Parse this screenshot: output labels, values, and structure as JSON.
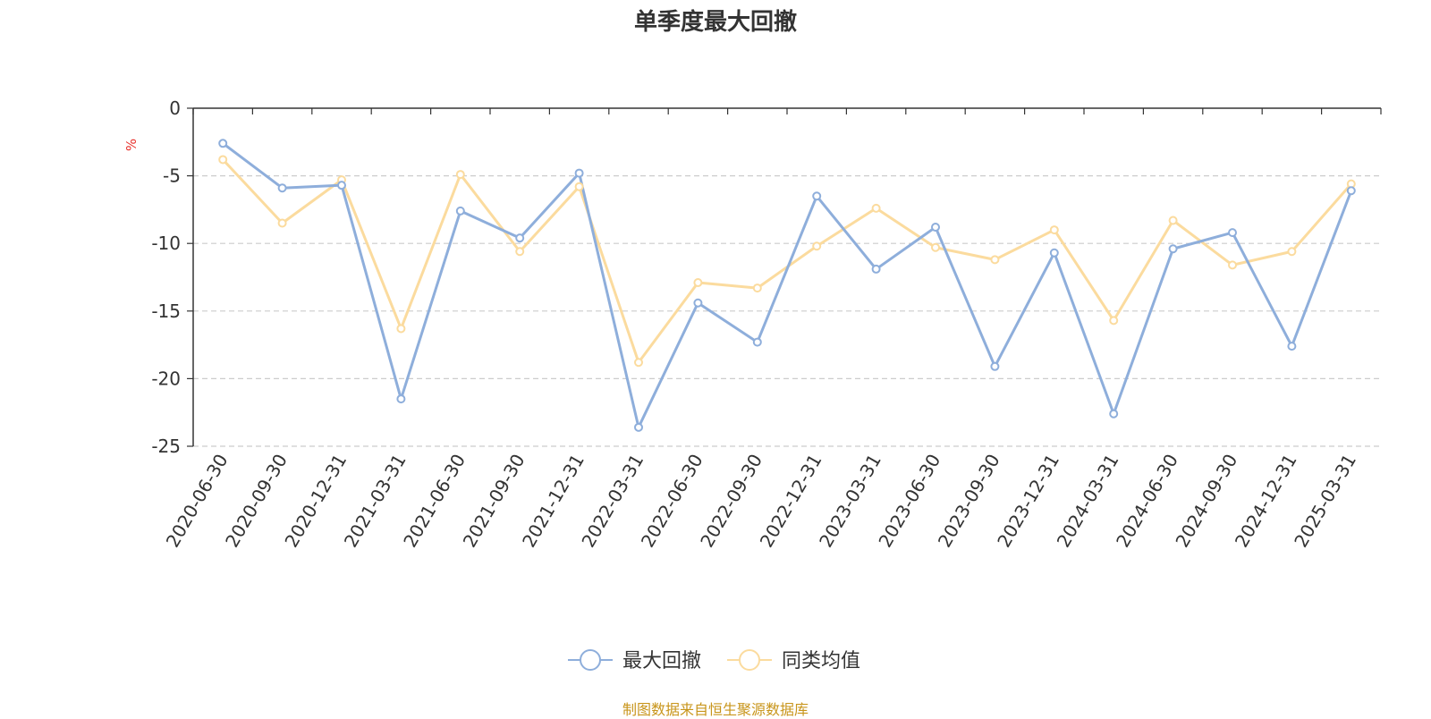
{
  "chart_data": {
    "type": "line",
    "title": "单季度最大回撤",
    "ylabel": "%",
    "xlabel": "",
    "ylim": [
      -25,
      0
    ],
    "yticks": [
      0,
      -5,
      -10,
      -15,
      -20,
      -25
    ],
    "grid": true,
    "legend_position": "bottom",
    "categories": [
      "2020-06-30",
      "2020-09-30",
      "2020-12-31",
      "2021-03-31",
      "2021-06-30",
      "2021-09-30",
      "2021-12-31",
      "2022-03-31",
      "2022-06-30",
      "2022-09-30",
      "2022-12-31",
      "2023-03-31",
      "2023-06-30",
      "2023-09-30",
      "2023-12-31",
      "2024-03-31",
      "2024-06-30",
      "2024-09-30",
      "2024-12-31",
      "2025-03-31"
    ],
    "series": [
      {
        "name": "最大回撤",
        "color": "#8eaedb",
        "values": [
          -2.6,
          -5.9,
          -5.7,
          -21.5,
          -7.6,
          -9.6,
          -4.8,
          -23.6,
          -14.4,
          -17.3,
          -6.5,
          -11.9,
          -8.8,
          -19.1,
          -10.7,
          -22.6,
          -10.4,
          -9.2,
          -17.6,
          -6.1
        ]
      },
      {
        "name": "同类均值",
        "color": "#fbdb9e",
        "values": [
          -3.8,
          -8.5,
          -5.3,
          -16.3,
          -4.9,
          -10.6,
          -5.8,
          -18.8,
          -12.9,
          -13.3,
          -10.2,
          -7.4,
          -10.3,
          -11.2,
          -9.0,
          -15.7,
          -8.3,
          -11.6,
          -10.6,
          -5.6
        ]
      }
    ]
  },
  "source_text": "制图数据来自恒生聚源数据库",
  "colors": {
    "axis": "#333333",
    "grid": "#cccccc",
    "ylabel": "#e8322d",
    "source": "#c8951b"
  }
}
